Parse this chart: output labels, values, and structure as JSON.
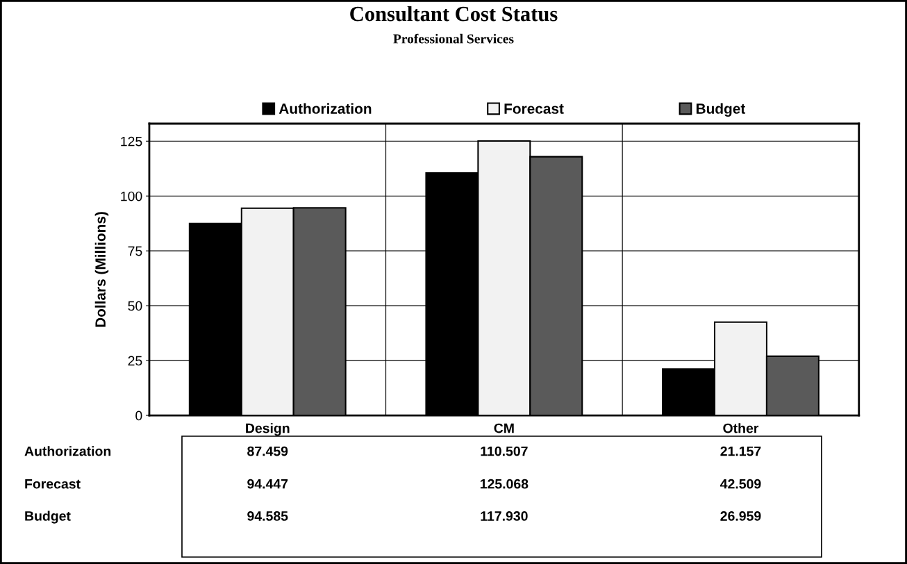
{
  "chart_data": {
    "type": "bar",
    "title": "Consultant Cost Status",
    "subtitle": "Professional Services",
    "ylabel": "Dollars (Millions)",
    "categories": [
      "Design",
      "CM",
      "Other"
    ],
    "series": [
      {
        "name": "Authorization",
        "color": "#000000",
        "values": [
          87.459,
          110.507,
          21.157
        ],
        "value_labels": [
          "87.459",
          "110.507",
          "21.157"
        ]
      },
      {
        "name": "Forecast",
        "color": "#f2f2f2",
        "values": [
          94.447,
          125.068,
          42.509
        ],
        "value_labels": [
          "94.447",
          "125.068",
          "42.509"
        ]
      },
      {
        "name": "Budget",
        "color": "#5a5a5a",
        "values": [
          94.585,
          117.93,
          26.959
        ],
        "value_labels": [
          "94.585",
          "117.930",
          "26.959"
        ]
      }
    ],
    "ylim": [
      0,
      133
    ],
    "yticks": [
      0,
      25,
      50,
      75,
      100,
      125
    ],
    "grid": true,
    "legend": "top"
  }
}
